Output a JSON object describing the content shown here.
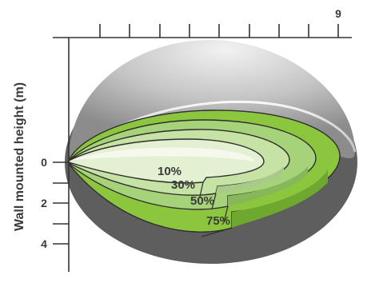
{
  "diagram": {
    "y_axis_label": "Wall mounted height (m)",
    "top_tick_label": "9",
    "left_tick_labels": [
      "0",
      "2",
      "4"
    ],
    "zones": [
      {
        "label": "10%",
        "color": "#e3f0d2"
      },
      {
        "label": "30%",
        "color": "#c6e2a5"
      },
      {
        "label": "50%",
        "color": "#a6d27a"
      },
      {
        "label": "75%",
        "color": "#8cc63f"
      }
    ],
    "colors": {
      "outer_dome_light": "#e6e6e6",
      "outer_dome_dark": "#8c8c8c",
      "floor_shadow": "#5e5e5e",
      "zone_outline": "#2e2e2e",
      "axis": "#333333",
      "text": "#3a3a3a"
    }
  }
}
